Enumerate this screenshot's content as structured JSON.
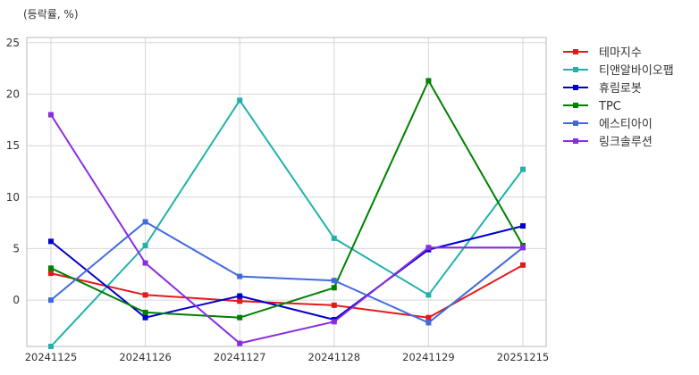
{
  "chart_data": {
    "type": "line",
    "ylabel": "(등락률, %)",
    "categories": [
      "20241125",
      "20241126",
      "20241127",
      "20241128",
      "20241129",
      "20251215"
    ],
    "ylim": [
      -4.5,
      25.5
    ],
    "yticks": [
      0,
      5,
      10,
      15,
      20,
      25
    ],
    "grid": true,
    "legend_position": "right",
    "series": [
      {
        "name": "테마지수",
        "color": "#e31a1c",
        "values": [
          2.6,
          0.5,
          -0.1,
          -0.5,
          -1.7,
          3.4
        ]
      },
      {
        "name": "티앤알바이오팹",
        "color": "#20b2aa",
        "values": [
          -4.5,
          5.3,
          19.4,
          6.0,
          0.5,
          12.7
        ]
      },
      {
        "name": "휴림로봇",
        "color": "#0000cd",
        "values": [
          5.7,
          -1.7,
          0.4,
          -1.9,
          4.9,
          7.2
        ]
      },
      {
        "name": "TPC",
        "color": "#008000",
        "values": [
          3.1,
          -1.2,
          -1.7,
          1.2,
          21.3,
          5.3
        ]
      },
      {
        "name": "에스티아이",
        "color": "#4169e1",
        "values": [
          0.0,
          7.6,
          2.3,
          1.9,
          -2.2,
          5.1
        ]
      },
      {
        "name": "링크솔루션",
        "color": "#8a2be2",
        "values": [
          18.0,
          3.6,
          -4.2,
          -2.1,
          5.1,
          5.1
        ]
      }
    ]
  }
}
